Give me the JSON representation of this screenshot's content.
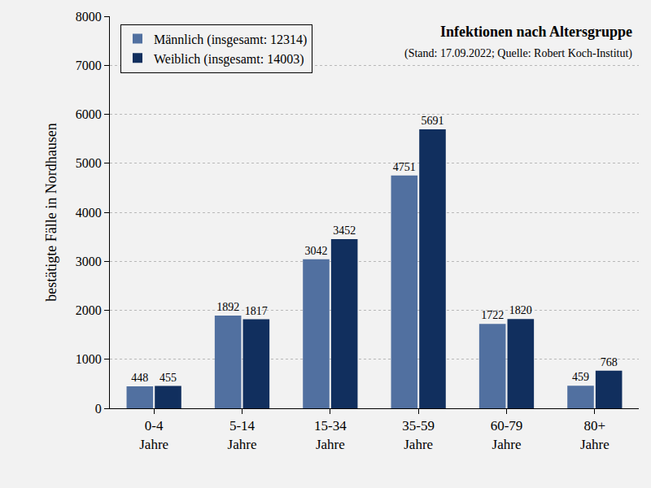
{
  "chart_data": {
    "type": "bar",
    "title": "Infektionen nach Altersgruppe",
    "subtitle": "(Stand: 17.09.2022; Quelle: Robert Koch-Institut)",
    "y_label": "bestätigte Fälle in Nordhausen",
    "categories": [
      "0-4 Jahre",
      "5-14 Jahre",
      "15-34 Jahre",
      "35-59 Jahre",
      "60-79 Jahre",
      "80+ Jahre"
    ],
    "series": [
      {
        "name": "Männlich (insgesamt: 12314)",
        "color": "#5170a0",
        "values": [
          448,
          1892,
          3042,
          4751,
          1722,
          459
        ]
      },
      {
        "name": "Weiblich (insgesamt: 14003)",
        "color": "#112f5e",
        "values": [
          455,
          1817,
          3452,
          5691,
          1820,
          768
        ]
      }
    ],
    "ylim": [
      0,
      8000
    ],
    "yticks": [
      0,
      1000,
      2000,
      3000,
      4000,
      5000,
      6000,
      7000,
      8000
    ],
    "grid": true,
    "legend": "top-left",
    "data_labels": true
  }
}
